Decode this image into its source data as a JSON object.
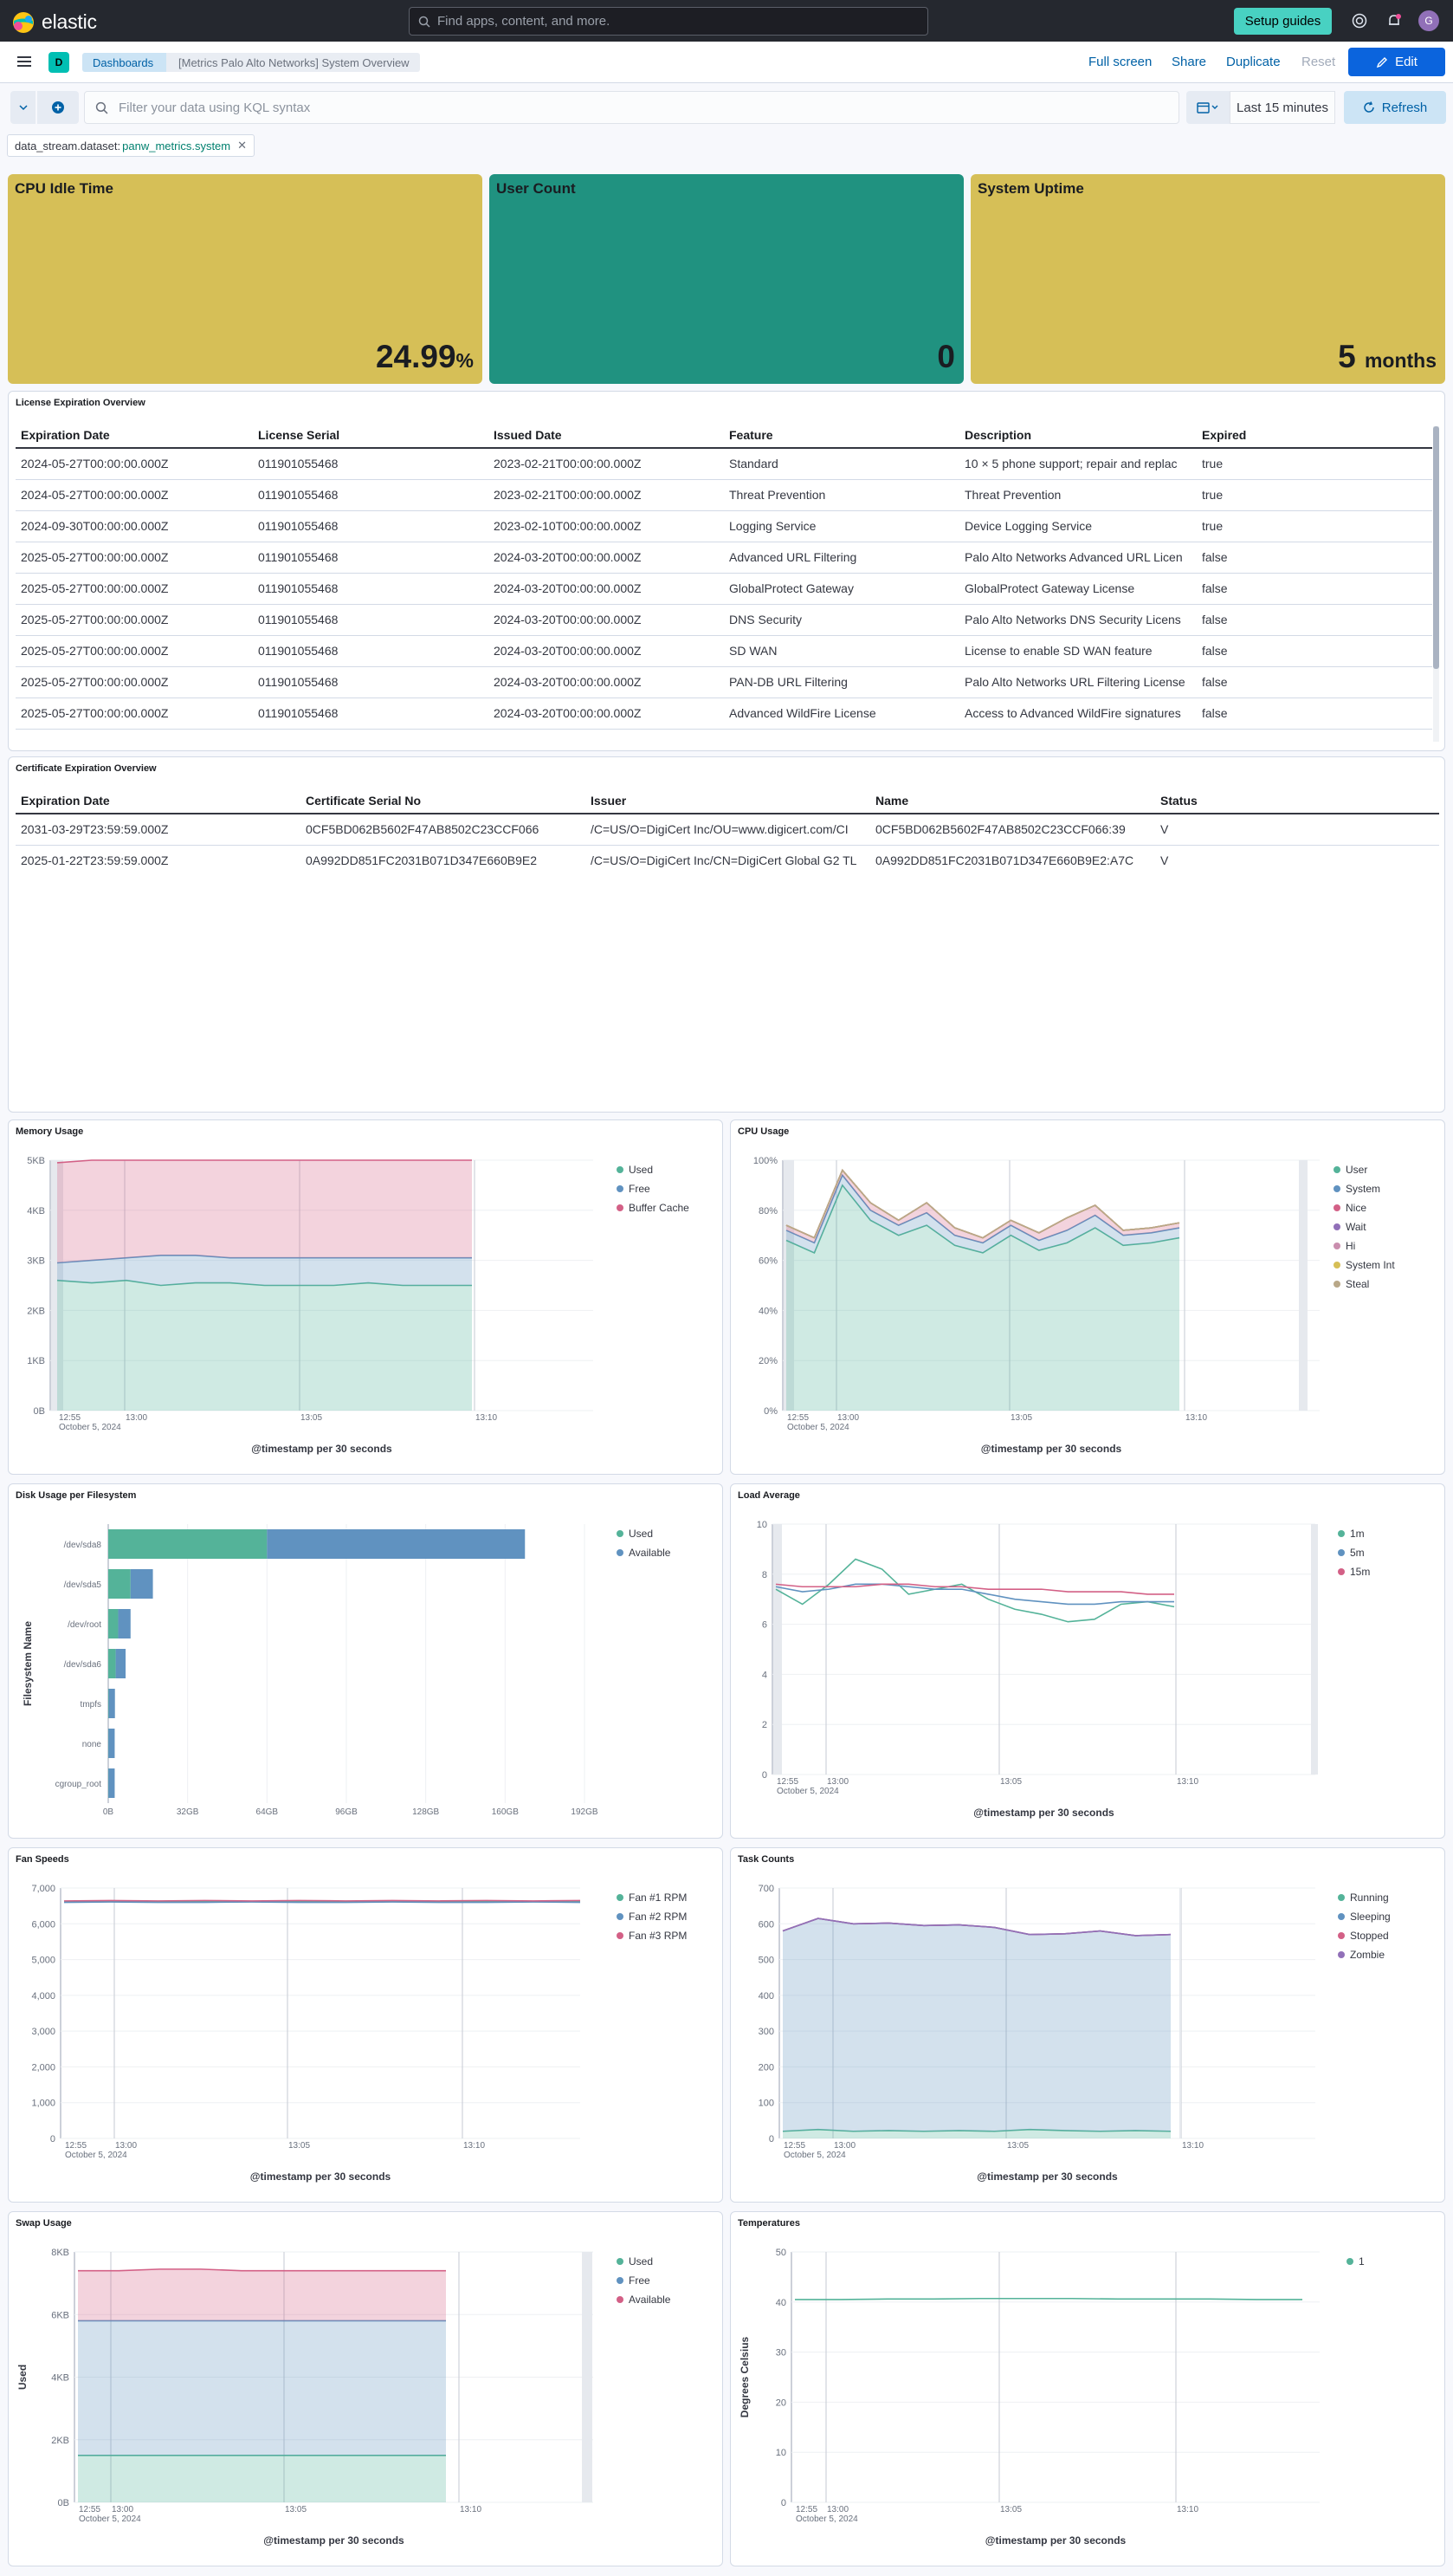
{
  "header": {
    "brand": "elastic",
    "search_placeholder": "Find apps, content, and more.",
    "setup_guides": "Setup guides",
    "avatar_initial": "G"
  },
  "toolbar": {
    "space_badge": "D",
    "breadcrumbs": [
      "Dashboards",
      "[Metrics Palo Alto Networks] System Overview"
    ],
    "full_screen": "Full screen",
    "share": "Share",
    "duplicate": "Duplicate",
    "reset": "Reset",
    "edit": "Edit"
  },
  "query": {
    "kql_placeholder": "Filter your data using KQL syntax",
    "time_range": "Last 15 minutes",
    "refresh": "Refresh",
    "filter_pill": {
      "field": "data_stream.dataset:",
      "value": "panw_metrics.system"
    }
  },
  "metrics": [
    {
      "title": "CPU Idle Time",
      "value": "24.99",
      "unit": "%",
      "color": "#d6bf57"
    },
    {
      "title": "User Count",
      "value": "0",
      "unit": "",
      "color": "#209280"
    },
    {
      "title": "System Uptime",
      "value": "5",
      "unit": "months",
      "color": "#d6bf57"
    }
  ],
  "license_table": {
    "title": "License Expiration Overview",
    "columns": [
      "Expiration Date",
      "License Serial",
      "Issued Date",
      "Feature",
      "Description",
      "Expired"
    ],
    "rows": [
      [
        "2024-05-27T00:00:00.000Z",
        "011901055468",
        "2023-02-21T00:00:00.000Z",
        "Standard",
        "10 × 5 phone support; repair and replac",
        "true"
      ],
      [
        "2024-05-27T00:00:00.000Z",
        "011901055468",
        "2023-02-21T00:00:00.000Z",
        "Threat Prevention",
        "Threat Prevention",
        "true"
      ],
      [
        "2024-09-30T00:00:00.000Z",
        "011901055468",
        "2023-02-10T00:00:00.000Z",
        "Logging Service",
        "Device Logging Service",
        "true"
      ],
      [
        "2025-05-27T00:00:00.000Z",
        "011901055468",
        "2024-03-20T00:00:00.000Z",
        "Advanced URL Filtering",
        "Palo Alto Networks Advanced URL Licen",
        "false"
      ],
      [
        "2025-05-27T00:00:00.000Z",
        "011901055468",
        "2024-03-20T00:00:00.000Z",
        "GlobalProtect Gateway",
        "GlobalProtect Gateway License",
        "false"
      ],
      [
        "2025-05-27T00:00:00.000Z",
        "011901055468",
        "2024-03-20T00:00:00.000Z",
        "DNS Security",
        "Palo Alto Networks DNS Security Licens",
        "false"
      ],
      [
        "2025-05-27T00:00:00.000Z",
        "011901055468",
        "2024-03-20T00:00:00.000Z",
        "SD WAN",
        "License to enable SD WAN feature",
        "false"
      ],
      [
        "2025-05-27T00:00:00.000Z",
        "011901055468",
        "2024-03-20T00:00:00.000Z",
        "PAN-DB URL Filtering",
        "Palo Alto Networks URL Filtering License",
        "false"
      ],
      [
        "2025-05-27T00:00:00.000Z",
        "011901055468",
        "2024-03-20T00:00:00.000Z",
        "Advanced WildFire License",
        "Access to Advanced WildFire signatures",
        "false"
      ]
    ]
  },
  "cert_table": {
    "title": "Certificate Expiration Overview",
    "columns": [
      "Expiration Date",
      "Certificate Serial No",
      "Issuer",
      "Name",
      "Status"
    ],
    "rows": [
      [
        "2031-03-29T23:59:59.000Z",
        "0CF5BD062B5602F47AB8502C23CCF066",
        "/C=US/O=DigiCert Inc/OU=www.digicert.com/CI",
        "0CF5BD062B5602F47AB8502C23CCF066:39",
        "V"
      ],
      [
        "2025-01-22T23:59:59.000Z",
        "0A992DD851FC2031B071D347E660B9E2",
        "/C=US/O=DigiCert Inc/CN=DigiCert Global G2 TL",
        "0A992DD851FC2031B071D347E660B9E2:A7C",
        "V"
      ]
    ]
  },
  "chart_data": [
    {
      "id": "memory",
      "type": "area",
      "title": "Memory Usage",
      "xlabel": "@timestamp per 30 seconds",
      "yticks": [
        "0B",
        "1KB",
        "2KB",
        "3KB",
        "4KB",
        "5KB"
      ],
      "ylim": [
        0,
        5
      ],
      "xticks": [
        "12:55",
        "13:00",
        "13:05",
        "13:10"
      ],
      "date_label": "October 5, 2024",
      "series": [
        {
          "name": "Used",
          "color": "#54b399",
          "values": [
            2.6,
            2.55,
            2.6,
            2.5,
            2.55,
            2.55,
            2.5,
            2.5,
            2.5,
            2.55,
            2.5,
            2.5,
            2.5
          ]
        },
        {
          "name": "Free",
          "color": "#6092c0",
          "values": [
            0.35,
            0.45,
            0.45,
            0.6,
            0.55,
            0.5,
            0.55,
            0.55,
            0.55,
            0.5,
            0.55,
            0.55,
            0.55
          ]
        },
        {
          "name": "Buffer Cache",
          "color": "#d36086",
          "values": [
            2.0,
            2.0,
            1.95,
            1.9,
            1.9,
            1.95,
            1.95,
            1.95,
            1.95,
            1.95,
            1.95,
            1.95,
            1.95
          ]
        }
      ]
    },
    {
      "id": "cpu",
      "type": "area",
      "title": "CPU Usage",
      "xlabel": "@timestamp per 30 seconds",
      "yticks": [
        "0%",
        "20%",
        "40%",
        "60%",
        "80%",
        "100%"
      ],
      "ylim": [
        0,
        100
      ],
      "xticks": [
        "12:55",
        "13:00",
        "13:05",
        "13:10"
      ],
      "date_label": "October 5, 2024",
      "series": [
        {
          "name": "User",
          "color": "#54b399",
          "values": [
            68,
            63,
            90,
            76,
            70,
            74,
            66,
            63,
            70,
            64,
            67,
            73,
            66,
            67,
            69
          ]
        },
        {
          "name": "System",
          "color": "#6092c0",
          "values": [
            4,
            4,
            4,
            4,
            4,
            5,
            4,
            4,
            4,
            4,
            5,
            5,
            4,
            4,
            4
          ]
        },
        {
          "name": "Nice",
          "color": "#d36086",
          "values": [
            2,
            2,
            2,
            3,
            2,
            4,
            3,
            2,
            2,
            3,
            5,
            4,
            2,
            2,
            2
          ]
        },
        {
          "name": "Wait",
          "color": "#9170b8",
          "values": [
            0,
            0,
            0,
            0,
            0,
            0,
            0,
            0,
            0,
            0,
            0,
            0,
            0,
            0,
            0
          ]
        },
        {
          "name": "Hi",
          "color": "#ca8eae",
          "values": [
            0,
            0,
            0,
            0,
            0,
            0,
            0,
            0,
            0,
            0,
            0,
            0,
            0,
            0,
            0
          ]
        },
        {
          "name": "System Int",
          "color": "#d6bf57",
          "values": [
            0,
            0,
            0,
            0,
            0,
            0,
            0,
            0,
            0,
            0,
            0,
            0,
            0,
            0,
            0
          ]
        },
        {
          "name": "Steal",
          "color": "#b9a888",
          "values": [
            0,
            0,
            0,
            0,
            0,
            0,
            0,
            0,
            0,
            0,
            0,
            0,
            0,
            0,
            0
          ]
        }
      ]
    },
    {
      "id": "disk",
      "type": "bar",
      "title": "Disk Usage per Filesystem",
      "ylabel": "Filesystem Name",
      "categories": [
        "/dev/sda8",
        "/dev/sda5",
        "/dev/root",
        "/dev/sda6",
        "tmpfs",
        "none",
        "cgroup_root"
      ],
      "xticks": [
        "0B",
        "32GB",
        "64GB",
        "96GB",
        "128GB",
        "160GB",
        "192GB"
      ],
      "xlim": [
        0,
        192
      ],
      "series": [
        {
          "name": "Used",
          "color": "#54b399",
          "values": [
            64,
            9,
            4,
            3,
            0.2,
            0.1,
            0.1
          ]
        },
        {
          "name": "Available",
          "color": "#6092c0",
          "values": [
            104,
            9,
            5,
            4,
            2.5,
            2.5,
            2.5
          ]
        }
      ]
    },
    {
      "id": "load",
      "type": "line",
      "title": "Load Average",
      "xlabel": "@timestamp per 30 seconds",
      "yticks": [
        "0",
        "2",
        "4",
        "6",
        "8",
        "10"
      ],
      "ylim": [
        0,
        10
      ],
      "xticks": [
        "12:55",
        "13:00",
        "13:05",
        "13:10"
      ],
      "date_label": "October 5, 2024",
      "series": [
        {
          "name": "1m",
          "color": "#54b399",
          "values": [
            7.4,
            6.8,
            7.6,
            8.6,
            8.2,
            7.2,
            7.4,
            7.6,
            7.0,
            6.6,
            6.4,
            6.1,
            6.2,
            6.8,
            6.9,
            6.7
          ]
        },
        {
          "name": "5m",
          "color": "#6092c0",
          "values": [
            7.5,
            7.3,
            7.4,
            7.6,
            7.6,
            7.5,
            7.4,
            7.4,
            7.2,
            7.0,
            6.9,
            6.8,
            6.8,
            6.9,
            6.9,
            6.9
          ]
        },
        {
          "name": "15m",
          "color": "#d36086",
          "values": [
            7.6,
            7.5,
            7.5,
            7.5,
            7.6,
            7.6,
            7.5,
            7.5,
            7.4,
            7.4,
            7.4,
            7.3,
            7.3,
            7.3,
            7.2,
            7.2
          ]
        }
      ]
    },
    {
      "id": "fan",
      "type": "line",
      "title": "Fan Speeds",
      "xlabel": "@timestamp per 30 seconds",
      "yticks": [
        "0",
        "1,000",
        "2,000",
        "3,000",
        "4,000",
        "5,000",
        "6,000",
        "7,000"
      ],
      "ylim": [
        0,
        7000
      ],
      "xticks": [
        "12:55",
        "13:00",
        "13:05",
        "13:10"
      ],
      "date_label": "October 5, 2024",
      "series": [
        {
          "name": "Fan #1 RPM",
          "color": "#54b399",
          "values": [
            6620,
            6620,
            6620,
            6620,
            6620,
            6620,
            6620,
            6620,
            6620,
            6620,
            6620,
            6620
          ]
        },
        {
          "name": "Fan #2 RPM",
          "color": "#6092c0",
          "values": [
            6600,
            6610,
            6600,
            6600,
            6610,
            6600,
            6600,
            6610,
            6600,
            6600,
            6610,
            6600
          ]
        },
        {
          "name": "Fan #3 RPM",
          "color": "#d36086",
          "values": [
            6640,
            6650,
            6640,
            6650,
            6640,
            6650,
            6640,
            6650,
            6640,
            6650,
            6640,
            6650
          ]
        }
      ]
    },
    {
      "id": "tasks",
      "type": "area",
      "title": "Task Counts",
      "xlabel": "@timestamp per 30 seconds",
      "yticks": [
        "0",
        "100",
        "200",
        "300",
        "400",
        "500",
        "600",
        "700"
      ],
      "ylim": [
        0,
        700
      ],
      "xticks": [
        "12:55",
        "13:00",
        "13:05",
        "13:10"
      ],
      "date_label": "October 5, 2024",
      "series": [
        {
          "name": "Running",
          "color": "#54b399",
          "values": [
            20,
            25,
            20,
            22,
            20,
            22,
            20,
            25,
            22,
            20,
            22,
            20
          ]
        },
        {
          "name": "Sleeping",
          "color": "#6092c0",
          "values": [
            560,
            590,
            580,
            580,
            575,
            575,
            570,
            545,
            550,
            560,
            545,
            550
          ]
        },
        {
          "name": "Stopped",
          "color": "#d36086",
          "values": [
            0,
            0,
            0,
            0,
            0,
            0,
            0,
            0,
            0,
            0,
            0,
            0
          ]
        },
        {
          "name": "Zombie",
          "color": "#9170b8",
          "values": [
            0,
            0,
            0,
            0,
            0,
            0,
            0,
            0,
            0,
            0,
            0,
            0
          ]
        }
      ]
    },
    {
      "id": "swap",
      "type": "area",
      "title": "Swap Usage",
      "ylabel": "Used",
      "xlabel": "@timestamp per 30 seconds",
      "yticks": [
        "0B",
        "2KB",
        "4KB",
        "6KB",
        "8KB"
      ],
      "ylim": [
        0,
        8
      ],
      "xticks": [
        "12:55",
        "13:00",
        "13:05",
        "13:10"
      ],
      "date_label": "October 5, 2024",
      "series": [
        {
          "name": "Used",
          "color": "#54b399",
          "values": [
            1.5,
            1.5,
            1.5,
            1.5,
            1.5,
            1.5,
            1.5,
            1.5,
            1.5,
            1.5
          ]
        },
        {
          "name": "Free",
          "color": "#6092c0",
          "values": [
            4.3,
            4.3,
            4.3,
            4.3,
            4.3,
            4.3,
            4.3,
            4.3,
            4.3,
            4.3
          ]
        },
        {
          "name": "Available",
          "color": "#d36086",
          "values": [
            1.6,
            1.6,
            1.65,
            1.65,
            1.6,
            1.6,
            1.6,
            1.6,
            1.6,
            1.6
          ]
        }
      ]
    },
    {
      "id": "temps",
      "type": "line",
      "title": "Temperatures",
      "ylabel": "Degrees Celsius",
      "xlabel": "@timestamp per 30 seconds",
      "yticks": [
        "0",
        "10",
        "20",
        "30",
        "40",
        "50"
      ],
      "ylim": [
        0,
        50
      ],
      "xticks": [
        "12:55",
        "13:00",
        "13:05",
        "13:10"
      ],
      "date_label": "October 5, 2024",
      "series": [
        {
          "name": "1",
          "color": "#54b399",
          "values": [
            40.5,
            40.5,
            40.6,
            40.6,
            40.7,
            40.7,
            40.7,
            40.6,
            40.6,
            40.6,
            40.5,
            40.5
          ]
        }
      ]
    }
  ]
}
